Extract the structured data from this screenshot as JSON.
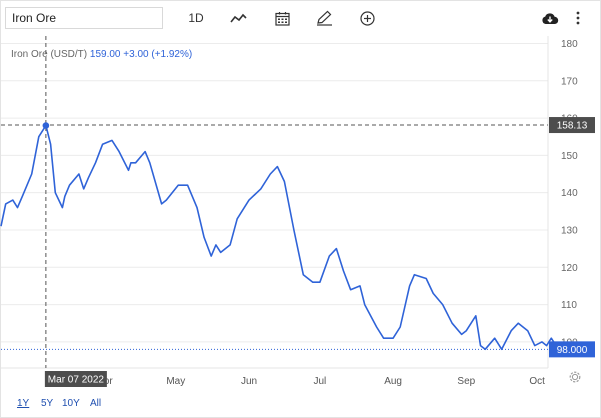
{
  "toolbar": {
    "symbol_value": "Iron Ore",
    "interval_label": "1D",
    "icons": [
      "line-chart-icon",
      "calendar-icon",
      "pencil-icon",
      "plus-circle-icon",
      "cloud-download-icon",
      "more-vertical-icon"
    ]
  },
  "legend": {
    "name": "Iron Ore (USD/T)",
    "price": "159.00",
    "change": "+3.00 (+1.92%)"
  },
  "crosshair": {
    "date_label": "Mar 07 2022",
    "price_label": "158.13"
  },
  "last_price_label": "98.000",
  "periods": [
    {
      "label": "1Y",
      "active": true
    },
    {
      "label": "5Y",
      "active": false
    },
    {
      "label": "10Y",
      "active": false
    },
    {
      "label": "All",
      "active": false
    }
  ],
  "colors": {
    "line": "#2f63d8",
    "last_price_tag": "#2f63d8",
    "crosshair_tag": "#4d4d4d"
  },
  "chart_data": {
    "type": "line",
    "title": "",
    "xlabel": "",
    "ylabel": "",
    "ylim": [
      93,
      182
    ],
    "y_ticks": [
      100,
      110,
      120,
      130,
      140,
      150,
      160,
      170,
      180
    ],
    "x_tick_labels": [
      "Apr",
      "May",
      "Jun",
      "Jul",
      "Aug",
      "Sep",
      "Oct"
    ],
    "grid": "horizontal",
    "series": [
      {
        "x": [
          "2022-02-16",
          "2022-02-18",
          "2022-02-21",
          "2022-02-23",
          "2022-02-25",
          "2022-03-01",
          "2022-03-04",
          "2022-03-07",
          "2022-03-09",
          "2022-03-11",
          "2022-03-14",
          "2022-03-15",
          "2022-03-17",
          "2022-03-21",
          "2022-03-23",
          "2022-03-25",
          "2022-03-28",
          "2022-03-31",
          "2022-04-04",
          "2022-04-07",
          "2022-04-11",
          "2022-04-12",
          "2022-04-14",
          "2022-04-18",
          "2022-04-20",
          "2022-04-25",
          "2022-04-27",
          "2022-05-02",
          "2022-05-06",
          "2022-05-10",
          "2022-05-13",
          "2022-05-16",
          "2022-05-18",
          "2022-05-20",
          "2022-05-24",
          "2022-05-27",
          "2022-06-01",
          "2022-06-06",
          "2022-06-10",
          "2022-06-13",
          "2022-06-16",
          "2022-06-20",
          "2022-06-24",
          "2022-06-28",
          "2022-07-01",
          "2022-07-05",
          "2022-07-08",
          "2022-07-11",
          "2022-07-14",
          "2022-07-18",
          "2022-07-20",
          "2022-07-25",
          "2022-07-28",
          "2022-08-01",
          "2022-08-04",
          "2022-08-08",
          "2022-08-10",
          "2022-08-15",
          "2022-08-18",
          "2022-08-22",
          "2022-08-26",
          "2022-08-30",
          "2022-09-01",
          "2022-09-05",
          "2022-09-07",
          "2022-09-09",
          "2022-09-13",
          "2022-09-16",
          "2022-09-20",
          "2022-09-23",
          "2022-09-27",
          "2022-09-30",
          "2022-10-03",
          "2022-10-05",
          "2022-10-07",
          "2022-10-10",
          "2022-10-14"
        ],
        "y": [
          131,
          137,
          138,
          136,
          139,
          145,
          155,
          158,
          153,
          140,
          136,
          139,
          142,
          145,
          141,
          144,
          148,
          153,
          154,
          151,
          146,
          148,
          148,
          151,
          148,
          137,
          138,
          142,
          142,
          136,
          128,
          123,
          126,
          124,
          126,
          133,
          138,
          141,
          145,
          147,
          143,
          130,
          118,
          116,
          116,
          123,
          125,
          119,
          114,
          115,
          110,
          104,
          101,
          101,
          104,
          115,
          118,
          117,
          113,
          110,
          105,
          102,
          103,
          107,
          99,
          98,
          101,
          98,
          103,
          105,
          103,
          99,
          100,
          99,
          101,
          98,
          98
        ]
      }
    ]
  }
}
